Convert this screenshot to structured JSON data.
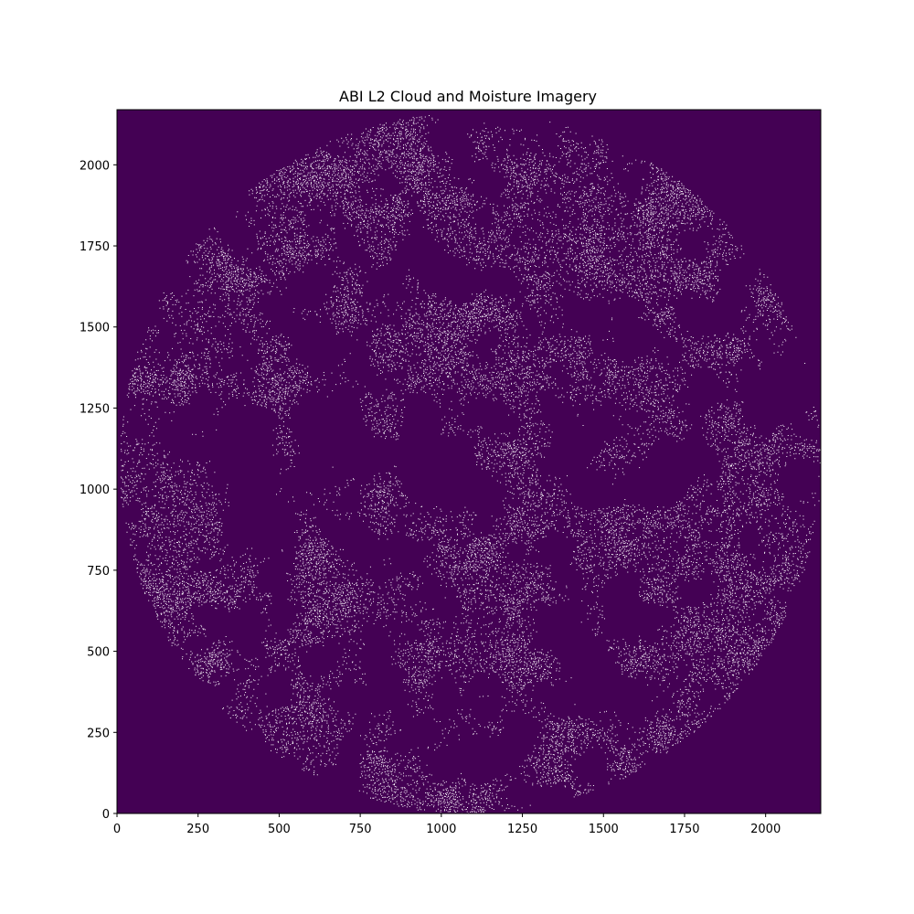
{
  "chart_data": {
    "type": "heatmap",
    "title": "ABI L2 Cloud and Moisture Imagery",
    "xlabel": "",
    "ylabel": "",
    "xlim": [
      0,
      2170
    ],
    "ylim": [
      0,
      2170
    ],
    "x_ticks": [
      0,
      250,
      500,
      750,
      1000,
      1250,
      1500,
      1750,
      2000
    ],
    "y_ticks": [
      0,
      250,
      500,
      750,
      1000,
      1250,
      1500,
      1750,
      2000
    ],
    "grid": false,
    "colors": {
      "background": "#440154",
      "cloud_pixels": "#ffffff"
    },
    "description_values": {
      "disk_center": [
        1085,
        1085
      ],
      "disk_radius": 1080
    }
  }
}
